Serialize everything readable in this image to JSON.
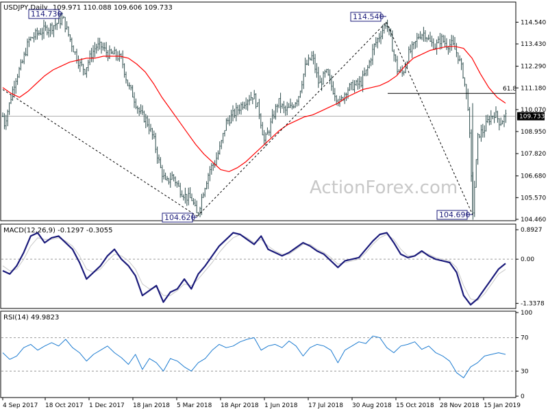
{
  "chart_data": [
    {
      "type": "ohlc",
      "title": "USDJPY,Daily",
      "quote": "109.971 110.088 109.606 109.733",
      "watermark": "ActionForex.com",
      "ylim": [
        104.46,
        115.5
      ],
      "yticks": [
        "114.540",
        "113.430",
        "112.290",
        "111.180",
        "110.070",
        "108.950",
        "107.820",
        "106.680",
        "105.570",
        "104.460"
      ],
      "last_price": "109.733",
      "x_labels": [
        "4 Sep 2017",
        "18 Oct 2017",
        "1 Dec 2017",
        "18 Jan 2018",
        "5 Mar 2018",
        "18 Apr 2018",
        "1 Jun 2018",
        "17 Jul 2018",
        "30 Aug 2018",
        "15 Oct 2018",
        "28 Nov 2018",
        "15 Jan 2019"
      ],
      "price_path": [
        [
          0,
          110.6
        ],
        [
          6,
          109.3
        ],
        [
          14,
          110.4
        ],
        [
          22,
          111.6
        ],
        [
          32,
          112.4
        ],
        [
          42,
          113.6
        ],
        [
          52,
          113.9
        ],
        [
          62,
          114.1
        ],
        [
          74,
          114.3
        ],
        [
          84,
          114.5
        ],
        [
          92,
          114.73
        ],
        [
          100,
          113.9
        ],
        [
          108,
          113.1
        ],
        [
          116,
          112.4
        ],
        [
          124,
          112.1
        ],
        [
          132,
          112.8
        ],
        [
          140,
          113.3
        ],
        [
          148,
          113.3
        ],
        [
          158,
          112.9
        ],
        [
          168,
          112.9
        ],
        [
          178,
          112.6
        ],
        [
          186,
          111.4
        ],
        [
          194,
          110.8
        ],
        [
          204,
          109.9
        ],
        [
          214,
          109.5
        ],
        [
          224,
          108.6
        ],
        [
          234,
          107.1
        ],
        [
          242,
          106.3
        ],
        [
          252,
          106.7
        ],
        [
          262,
          106.0
        ],
        [
          272,
          105.6
        ],
        [
          280,
          105.5
        ],
        [
          288,
          104.62
        ],
        [
          296,
          105.8
        ],
        [
          306,
          107.0
        ],
        [
          314,
          107.4
        ],
        [
          322,
          108.2
        ],
        [
          330,
          109.4
        ],
        [
          340,
          109.8
        ],
        [
          350,
          110.2
        ],
        [
          360,
          110.6
        ],
        [
          370,
          110.8
        ],
        [
          378,
          110.0
        ],
        [
          386,
          108.4
        ],
        [
          396,
          109.4
        ],
        [
          406,
          110.5
        ],
        [
          416,
          110.0
        ],
        [
          426,
          110.2
        ],
        [
          436,
          110.8
        ],
        [
          446,
          112.3
        ],
        [
          456,
          112.8
        ],
        [
          466,
          111.3
        ],
        [
          476,
          112.0
        ],
        [
          486,
          111.1
        ],
        [
          496,
          110.4
        ],
        [
          506,
          111.1
        ],
        [
          516,
          111.3
        ],
        [
          526,
          111.4
        ],
        [
          536,
          112.1
        ],
        [
          546,
          113.3
        ],
        [
          556,
          114.0
        ],
        [
          564,
          114.54
        ],
        [
          572,
          113.4
        ],
        [
          580,
          112.1
        ],
        [
          588,
          111.9
        ],
        [
          596,
          112.9
        ],
        [
          604,
          113.3
        ],
        [
          612,
          113.9
        ],
        [
          620,
          114.0
        ],
        [
          628,
          113.5
        ],
        [
          636,
          113.3
        ],
        [
          644,
          113.7
        ],
        [
          652,
          113.4
        ],
        [
          660,
          113.4
        ],
        [
          668,
          112.9
        ],
        [
          676,
          111.9
        ],
        [
          684,
          110.1
        ],
        [
          690,
          104.69
        ],
        [
          698,
          108.8
        ],
        [
          706,
          109.0
        ],
        [
          714,
          109.6
        ],
        [
          722,
          109.9
        ],
        [
          730,
          109.4
        ],
        [
          738,
          109.73
        ]
      ],
      "ma": {
        "color": "#ff0000",
        "values": [
          111.2,
          110.9,
          110.7,
          111.0,
          111.4,
          111.8,
          112.1,
          112.3,
          112.5,
          112.6,
          112.7,
          112.7,
          112.8,
          112.8,
          112.8,
          112.7,
          112.4,
          112.0,
          111.4,
          110.7,
          110.1,
          109.5,
          108.9,
          108.3,
          107.8,
          107.4,
          107.0,
          106.9,
          107.1,
          107.4,
          107.8,
          108.2,
          108.6,
          109.0,
          109.3,
          109.5,
          109.7,
          109.8,
          110.0,
          110.2,
          110.4,
          110.7,
          110.9,
          111.1,
          111.2,
          111.3,
          111.5,
          111.8,
          112.3,
          112.7,
          112.9,
          113.1,
          113.2,
          113.3,
          113.3,
          113.2,
          112.7,
          111.9,
          111.2,
          110.7,
          110.4
        ]
      },
      "annotations": [
        "114.730",
        "104.620",
        "114.540",
        "104.690"
      ],
      "fib_label": "61.8",
      "fib_level": 110.9
    },
    {
      "type": "line",
      "title": "MACD(12,26,9) -0.1297 -0.3055",
      "yticks": [
        "0.8927",
        "0.00",
        "-1.3378"
      ],
      "ylim": [
        -1.45,
        1.0
      ],
      "macd_color": "#1a1a7a",
      "signal_color": "#c8c8c8",
      "macd": [
        -0.35,
        -0.45,
        -0.2,
        0.2,
        0.7,
        0.8,
        0.5,
        0.65,
        0.7,
        0.5,
        0.3,
        -0.1,
        -0.6,
        -0.4,
        -0.2,
        0.1,
        0.3,
        0.0,
        -0.2,
        -0.5,
        -1.1,
        -0.95,
        -0.8,
        -1.3,
        -1.0,
        -0.9,
        -0.6,
        -0.9,
        -0.45,
        -0.2,
        0.1,
        0.4,
        0.6,
        0.8,
        0.75,
        0.6,
        0.45,
        0.7,
        0.3,
        0.2,
        0.1,
        0.2,
        0.35,
        0.5,
        0.4,
        0.25,
        0.15,
        -0.05,
        -0.25,
        -0.05,
        0.0,
        0.05,
        0.3,
        0.55,
        0.75,
        0.8,
        0.5,
        0.15,
        0.05,
        0.1,
        0.25,
        0.1,
        0.0,
        -0.05,
        -0.1,
        -0.4,
        -1.1,
        -1.38,
        -1.2,
        -0.9,
        -0.6,
        -0.3,
        -0.13
      ],
      "signal": [
        -0.2,
        -0.35,
        -0.3,
        0.0,
        0.4,
        0.65,
        0.6,
        0.6,
        0.65,
        0.55,
        0.4,
        0.1,
        -0.3,
        -0.4,
        -0.3,
        -0.05,
        0.15,
        0.1,
        -0.05,
        -0.3,
        -0.75,
        -0.9,
        -0.85,
        -1.1,
        -1.1,
        -0.95,
        -0.75,
        -0.8,
        -0.6,
        -0.35,
        -0.1,
        0.2,
        0.45,
        0.65,
        0.75,
        0.65,
        0.5,
        0.6,
        0.4,
        0.25,
        0.15,
        0.15,
        0.3,
        0.45,
        0.45,
        0.3,
        0.2,
        0.05,
        -0.15,
        -0.1,
        -0.05,
        0.0,
        0.2,
        0.45,
        0.65,
        0.75,
        0.6,
        0.3,
        0.1,
        0.1,
        0.2,
        0.15,
        0.05,
        0.0,
        -0.05,
        -0.25,
        -0.8,
        -1.2,
        -1.25,
        -1.05,
        -0.75,
        -0.45,
        -0.31
      ]
    },
    {
      "type": "line",
      "title": "RSI(14) 49.9823",
      "yticks": [
        "100",
        "70",
        "30",
        "0"
      ],
      "ylim": [
        0,
        100
      ],
      "color": "#1a7ad0",
      "values": [
        52,
        44,
        48,
        58,
        62,
        55,
        60,
        64,
        60,
        68,
        58,
        52,
        42,
        50,
        55,
        60,
        52,
        46,
        38,
        50,
        32,
        45,
        40,
        30,
        45,
        42,
        35,
        30,
        40,
        45,
        55,
        62,
        58,
        60,
        65,
        68,
        70,
        55,
        60,
        62,
        58,
        66,
        60,
        48,
        58,
        62,
        60,
        55,
        40,
        55,
        60,
        65,
        63,
        72,
        70,
        58,
        52,
        60,
        62,
        65,
        56,
        60,
        52,
        48,
        42,
        28,
        22,
        35,
        40,
        48,
        50,
        52,
        49.98
      ]
    }
  ]
}
